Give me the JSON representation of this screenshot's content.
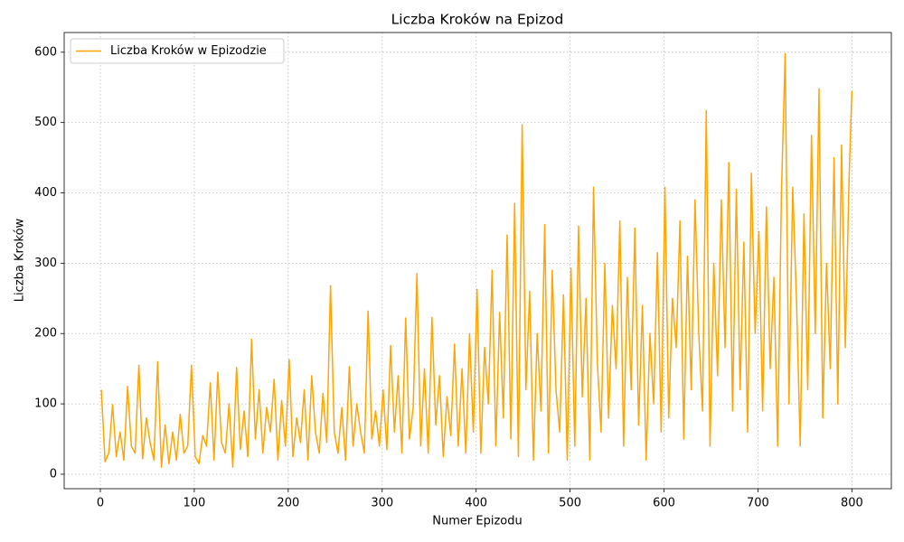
{
  "chart_data": {
    "type": "line",
    "title": "Liczba Kroków na Epizod",
    "xlabel": "Numer Epizodu",
    "ylabel": "Liczba Kroków",
    "x": [
      1,
      5,
      9,
      13,
      17,
      21,
      25,
      29,
      33,
      37,
      41,
      45,
      49,
      53,
      57,
      61,
      65,
      69,
      73,
      77,
      81,
      85,
      89,
      93,
      97,
      101,
      105,
      109,
      113,
      117,
      121,
      125,
      129,
      133,
      137,
      141,
      145,
      149,
      153,
      157,
      161,
      165,
      169,
      173,
      177,
      181,
      185,
      189,
      193,
      197,
      201,
      205,
      209,
      213,
      217,
      221,
      225,
      229,
      233,
      237,
      241,
      245,
      249,
      253,
      257,
      261,
      265,
      269,
      273,
      277,
      281,
      285,
      289,
      293,
      297,
      301,
      305,
      309,
      313,
      317,
      321,
      325,
      329,
      333,
      337,
      341,
      345,
      349,
      353,
      357,
      361,
      365,
      369,
      373,
      377,
      381,
      385,
      389,
      393,
      397,
      401,
      405,
      409,
      413,
      417,
      421,
      425,
      429,
      433,
      437,
      441,
      445,
      449,
      453,
      457,
      461,
      465,
      469,
      473,
      477,
      481,
      485,
      489,
      493,
      497,
      501,
      505,
      509,
      513,
      517,
      521,
      525,
      529,
      533,
      537,
      541,
      545,
      549,
      553,
      557,
      561,
      565,
      569,
      573,
      577,
      581,
      585,
      589,
      593,
      597,
      601,
      605,
      609,
      613,
      617,
      621,
      625,
      629,
      633,
      637,
      641,
      645,
      649,
      653,
      657,
      661,
      665,
      669,
      673,
      677,
      681,
      685,
      689,
      693,
      697,
      701,
      705,
      709,
      713,
      717,
      721,
      725,
      729,
      733,
      737,
      741,
      745,
      749,
      753,
      757,
      761,
      765,
      769,
      773,
      777,
      781,
      785,
      789,
      793,
      797,
      800
    ],
    "series": [
      {
        "name": "Liczba Kroków w Epizodzie",
        "color": "#ffa500",
        "values": [
          120,
          18,
          30,
          99,
          25,
          60,
          20,
          125,
          40,
          30,
          155,
          22,
          80,
          45,
          20,
          160,
          10,
          70,
          15,
          60,
          20,
          85,
          30,
          40,
          155,
          25,
          15,
          55,
          40,
          130,
          20,
          145,
          45,
          30,
          100,
          10,
          152,
          35,
          90,
          25,
          192,
          50,
          120,
          30,
          95,
          60,
          135,
          20,
          105,
          40,
          163,
          25,
          80,
          45,
          120,
          20,
          140,
          60,
          30,
          115,
          45,
          268,
          60,
          30,
          95,
          20,
          153,
          40,
          100,
          60,
          30,
          232,
          50,
          90,
          40,
          120,
          35,
          183,
          60,
          140,
          30,
          222,
          50,
          95,
          285,
          40,
          150,
          30,
          223,
          70,
          140,
          25,
          110,
          55,
          185,
          40,
          150,
          30,
          200,
          60,
          263,
          30,
          180,
          100,
          290,
          40,
          230,
          80,
          340,
          50,
          385,
          25,
          497,
          120,
          260,
          20,
          200,
          90,
          355,
          30,
          290,
          120,
          60,
          255,
          20,
          293,
          40,
          353,
          110,
          250,
          20,
          408,
          160,
          60,
          300,
          80,
          240,
          150,
          360,
          40,
          280,
          120,
          350,
          70,
          240,
          20,
          200,
          100,
          315,
          60,
          408,
          80,
          250,
          180,
          360,
          50,
          310,
          120,
          390,
          200,
          90,
          517,
          40,
          300,
          140,
          390,
          180,
          443,
          90,
          405,
          120,
          330,
          60,
          428,
          200,
          345,
          90,
          380,
          150,
          280,
          40,
          400,
          598,
          100,
          408,
          250,
          40,
          370,
          120,
          482,
          200,
          548,
          80,
          300,
          150,
          450,
          100,
          468,
          180,
          420,
          545
        ]
      }
    ],
    "xlim": [
      -38.5,
      842
    ],
    "ylim": [
      -20.6,
      628
    ],
    "xticks": [
      0,
      100,
      200,
      300,
      400,
      500,
      600,
      700,
      800
    ],
    "yticks": [
      0,
      100,
      200,
      300,
      400,
      500,
      600
    ],
    "grid": true,
    "legend": "upper-left"
  }
}
